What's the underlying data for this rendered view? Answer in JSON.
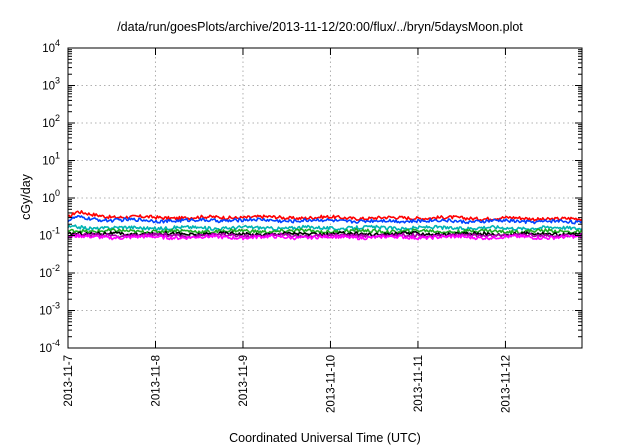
{
  "chart_data": {
    "type": "line",
    "title": "/data/run/goesPlots/archive/2013-11-12/20:00/flux/../bryn/5daysMoon.plot",
    "xlabel": "Coordinated Universal Time (UTC)",
    "ylabel": "cGy/day",
    "yscale": "log",
    "ylim": [
      0.0001,
      10000
    ],
    "xlim_days": [
      0,
      5.875
    ],
    "grid": true,
    "x_tick_labels": [
      "2013-11-7",
      "2013-11-8",
      "2013-11-9",
      "2013-11-10",
      "2013-11-11",
      "2013-11-12"
    ],
    "x_tick_positions_days": [
      0,
      1,
      2,
      3,
      4,
      5
    ],
    "y_ticks": [
      {
        "base": "10",
        "exp": "-4",
        "value": 0.0001
      },
      {
        "base": "10",
        "exp": "-3",
        "value": 0.001
      },
      {
        "base": "10",
        "exp": "-2",
        "value": 0.01
      },
      {
        "base": "10",
        "exp": "-1",
        "value": 0.1
      },
      {
        "base": "10",
        "exp": "0",
        "value": 1
      },
      {
        "base": "10",
        "exp": "1",
        "value": 10
      },
      {
        "base": "10",
        "exp": "2",
        "value": 100
      },
      {
        "base": "10",
        "exp": "3",
        "value": 1000
      },
      {
        "base": "10",
        "exp": "4",
        "value": 10000
      }
    ],
    "series": [
      {
        "color": "#ff0000",
        "x": [
          0,
          0.1,
          0.25,
          0.5,
          1,
          1.5,
          2,
          2.5,
          3,
          3.5,
          4,
          4.5,
          5,
          5.5,
          5.875
        ],
        "values": [
          0.3,
          0.42,
          0.36,
          0.32,
          0.3,
          0.3,
          0.31,
          0.3,
          0.3,
          0.29,
          0.3,
          0.29,
          0.29,
          0.28,
          0.27
        ]
      },
      {
        "color": "#0044ff",
        "x": [
          0,
          0.1,
          0.25,
          0.5,
          1,
          1.5,
          2,
          2.5,
          3,
          3.5,
          4,
          4.5,
          5,
          5.5,
          5.875
        ],
        "values": [
          0.24,
          0.3,
          0.28,
          0.26,
          0.25,
          0.25,
          0.26,
          0.25,
          0.25,
          0.24,
          0.25,
          0.24,
          0.24,
          0.24,
          0.22
        ]
      },
      {
        "color": "#00b4b4",
        "x": [
          0,
          0.1,
          0.25,
          0.5,
          1,
          1.5,
          2,
          2.5,
          3,
          3.5,
          4,
          4.5,
          5,
          5.5,
          5.875
        ],
        "values": [
          0.16,
          0.17,
          0.16,
          0.16,
          0.16,
          0.16,
          0.16,
          0.16,
          0.16,
          0.16,
          0.16,
          0.16,
          0.16,
          0.16,
          0.16
        ]
      },
      {
        "color": "#22aa22",
        "x": [
          0,
          0.1,
          0.25,
          0.5,
          1,
          1.5,
          2,
          2.5,
          3,
          3.5,
          4,
          4.5,
          5,
          5.5,
          5.875
        ],
        "values": [
          0.13,
          0.14,
          0.13,
          0.13,
          0.13,
          0.13,
          0.13,
          0.13,
          0.13,
          0.13,
          0.13,
          0.13,
          0.13,
          0.13,
          0.13
        ]
      },
      {
        "color": "#000000",
        "x": [
          0,
          0.1,
          0.25,
          0.5,
          1,
          1.5,
          2,
          2.5,
          3,
          3.5,
          4,
          4.5,
          5,
          5.5,
          5.875
        ],
        "values": [
          0.11,
          0.12,
          0.11,
          0.11,
          0.11,
          0.11,
          0.11,
          0.11,
          0.11,
          0.11,
          0.11,
          0.11,
          0.11,
          0.11,
          0.11
        ]
      },
      {
        "color": "#aa00aa",
        "x": [
          0,
          0.1,
          0.25,
          0.5,
          1,
          1.5,
          2,
          2.5,
          3,
          3.5,
          4,
          4.5,
          5,
          5.5,
          5.875
        ],
        "values": [
          0.1,
          0.105,
          0.1,
          0.1,
          0.1,
          0.1,
          0.1,
          0.1,
          0.1,
          0.1,
          0.1,
          0.1,
          0.1,
          0.1,
          0.1
        ]
      },
      {
        "color": "#ff00ff",
        "x": [
          0,
          0.1,
          0.25,
          0.5,
          1,
          1.5,
          2,
          2.5,
          3,
          3.5,
          4,
          4.5,
          5,
          5.5,
          5.875
        ],
        "values": [
          0.09,
          0.095,
          0.09,
          0.09,
          0.09,
          0.09,
          0.09,
          0.09,
          0.09,
          0.09,
          0.09,
          0.09,
          0.09,
          0.09,
          0.09
        ]
      }
    ]
  }
}
